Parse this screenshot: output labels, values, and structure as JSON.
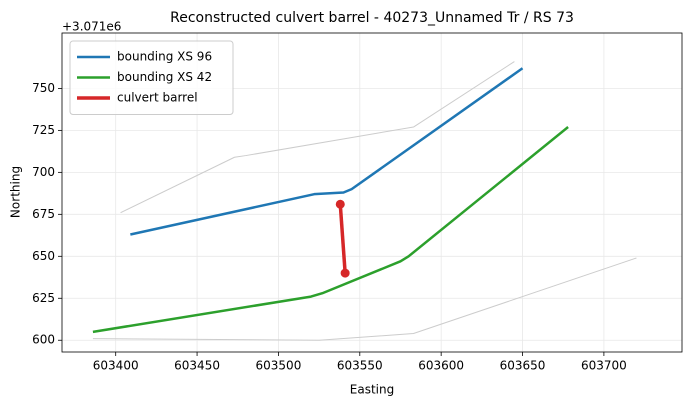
{
  "chart_data": {
    "type": "line",
    "title": "Reconstructed culvert barrel - 40273_Unnamed Tr / RS 73",
    "x_label": "Easting",
    "y_label": "Northing",
    "y_offset_label": "+3.071e6",
    "xlim": [
      603367,
      603748
    ],
    "ylim": [
      593,
      783
    ],
    "xticks": [
      603400,
      603450,
      603500,
      603550,
      603600,
      603650,
      603700
    ],
    "yticks": [
      600,
      625,
      650,
      675,
      700,
      725,
      750
    ],
    "grid": true,
    "legend": "upper left",
    "series": [
      {
        "color": "#cccccc",
        "x": [
          603403,
          603473,
          603480,
          603583,
          603645
        ],
        "values": [
          676,
          709,
          710,
          727,
          766
        ]
      },
      {
        "color": "#cccccc",
        "x": [
          603386,
          603525,
          603583,
          603720
        ],
        "values": [
          601,
          600,
          604,
          649
        ]
      },
      {
        "name": "bounding XS 96",
        "color": "#1f77b4",
        "x": [
          603409,
          603522,
          603540,
          603545,
          603650
        ],
        "values": [
          663,
          687,
          688,
          690,
          762
        ]
      },
      {
        "name": "bounding XS 42",
        "color": "#2ca02c",
        "x": [
          603386,
          603520,
          603527,
          603575,
          603580,
          603678
        ],
        "values": [
          605,
          626,
          628,
          647,
          650,
          727
        ]
      },
      {
        "name": "culvert barrel",
        "color": "#d62728",
        "x": [
          603538,
          603541
        ],
        "values": [
          681,
          640
        ],
        "markers": true
      }
    ]
  }
}
